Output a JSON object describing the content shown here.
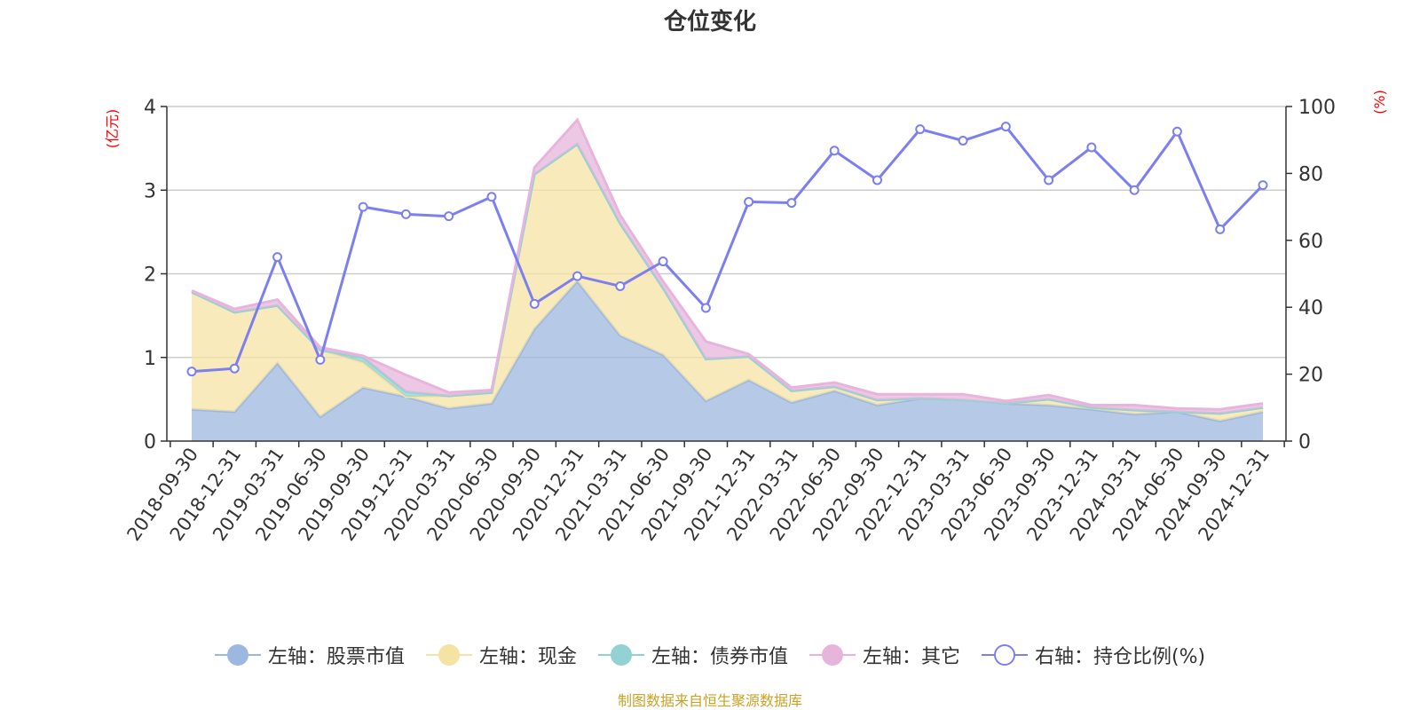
{
  "chart_data": {
    "type": "area",
    "title": "仓位变化",
    "source": "制图数据来自恒生聚源数据库",
    "y_left_label": "(亿元)",
    "y_right_label": "(%)",
    "ylim_left": [
      0,
      4
    ],
    "ylim_right": [
      0,
      100
    ],
    "yticks_left": [
      "0",
      "1",
      "2",
      "3",
      "4"
    ],
    "yticks_right": [
      "0",
      "20",
      "40",
      "60",
      "80",
      "100"
    ],
    "categories": [
      "2018-09-30",
      "2018-12-31",
      "2019-03-31",
      "2019-06-30",
      "2019-09-30",
      "2019-12-31",
      "2020-03-31",
      "2020-06-30",
      "2020-09-30",
      "2020-12-31",
      "2021-03-31",
      "2021-06-30",
      "2021-09-30",
      "2021-12-31",
      "2022-03-31",
      "2022-06-30",
      "2022-09-30",
      "2022-12-31",
      "2023-03-31",
      "2023-06-30",
      "2023-09-30",
      "2023-12-31",
      "2024-03-31",
      "2024-06-30",
      "2024-09-30",
      "2024-12-31"
    ],
    "series": [
      {
        "name": "左轴：股票市值",
        "axis": "left",
        "kind": "stacked-area",
        "color": "#9db8e0",
        "values": [
          0.38,
          0.35,
          0.93,
          0.29,
          0.64,
          0.53,
          0.39,
          0.45,
          1.34,
          1.91,
          1.26,
          1.03,
          0.48,
          0.73,
          0.46,
          0.6,
          0.43,
          0.51,
          0.49,
          0.45,
          0.43,
          0.38,
          0.32,
          0.35,
          0.24,
          0.35
        ]
      },
      {
        "name": "左轴：现金",
        "axis": "left",
        "kind": "stacked-area",
        "color": "#f5e3a3",
        "values": [
          1.4,
          1.19,
          0.69,
          0.8,
          0.3,
          0.0,
          0.15,
          0.13,
          1.85,
          1.64,
          1.34,
          0.8,
          0.5,
          0.28,
          0.14,
          0.05,
          0.06,
          0.0,
          0.0,
          0.0,
          0.07,
          0.02,
          0.05,
          0.0,
          0.09,
          0.05
        ]
      },
      {
        "name": "左轴：债券市值",
        "axis": "left",
        "kind": "stacked-area",
        "color": "#93d2d2",
        "values": [
          0,
          0,
          0,
          0,
          0.06,
          0.06,
          0,
          0,
          0,
          0,
          0,
          0,
          0,
          0,
          0,
          0,
          0,
          0,
          0,
          0,
          0,
          0,
          0,
          0,
          0,
          0
        ]
      },
      {
        "name": "左轴：其它",
        "axis": "left",
        "kind": "stacked-area",
        "color": "#e7b5dc",
        "values": [
          0.02,
          0.04,
          0.07,
          0.03,
          0.02,
          0.2,
          0.04,
          0.03,
          0.08,
          0.29,
          0.1,
          0.08,
          0.21,
          0.03,
          0.04,
          0.05,
          0.07,
          0.05,
          0.07,
          0.03,
          0.05,
          0.03,
          0.06,
          0.04,
          0.05,
          0.05
        ]
      },
      {
        "name": "右轴：持仓比例(%)",
        "axis": "right",
        "kind": "line",
        "color": "#7b7ff0",
        "values": [
          20.8,
          21.7,
          55.0,
          24.3,
          70.0,
          67.8,
          67.2,
          73.0,
          41.0,
          49.3,
          46.3,
          53.7,
          39.8,
          71.5,
          71.2,
          86.8,
          78.0,
          93.2,
          89.8,
          94.0,
          78.0,
          87.8,
          75.0,
          92.5,
          63.3,
          76.5
        ]
      }
    ]
  }
}
